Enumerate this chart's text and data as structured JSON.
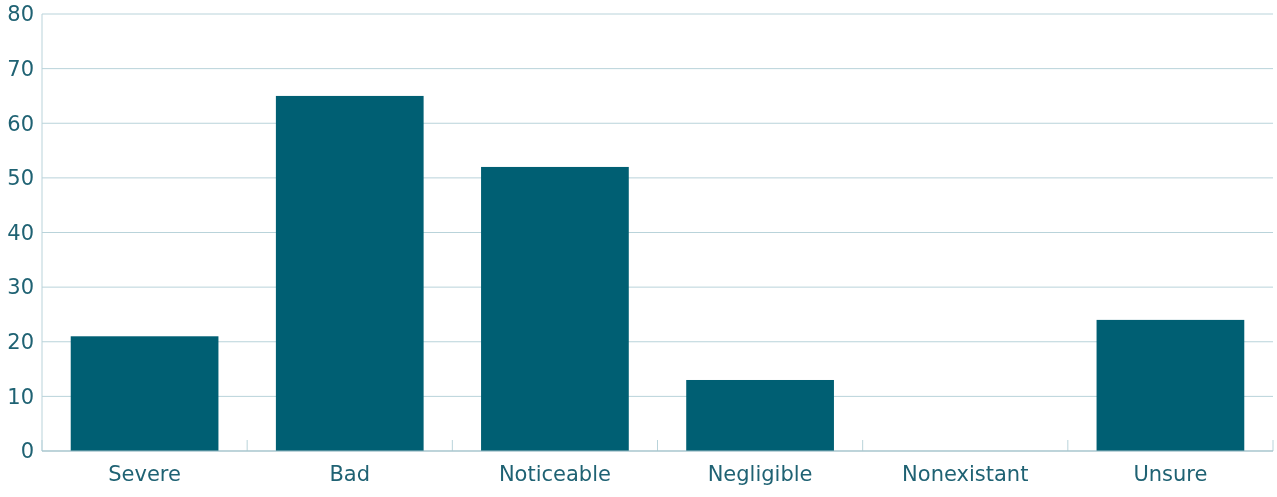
{
  "chart_data": {
    "type": "bar",
    "categories": [
      "Severe",
      "Bad",
      "Noticeable",
      "Negligible",
      "Nonexistant",
      "Unsure"
    ],
    "values": [
      21,
      65,
      52,
      13,
      0,
      24
    ],
    "color": "#005f73",
    "ylim": [
      0,
      80
    ],
    "yticks": [
      0,
      10,
      20,
      30,
      40,
      50,
      60,
      70,
      80
    ],
    "grid": "y"
  }
}
